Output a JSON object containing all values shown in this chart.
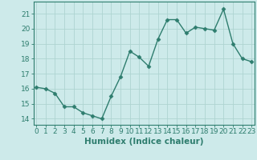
{
  "x": [
    0,
    1,
    2,
    3,
    4,
    5,
    6,
    7,
    8,
    9,
    10,
    11,
    12,
    13,
    14,
    15,
    16,
    17,
    18,
    19,
    20,
    21,
    22,
    23
  ],
  "y": [
    16.1,
    16.0,
    15.7,
    14.8,
    14.8,
    14.4,
    14.2,
    14.0,
    15.5,
    16.8,
    18.5,
    18.1,
    17.5,
    19.3,
    20.6,
    20.6,
    19.7,
    20.1,
    20.0,
    19.9,
    21.3,
    19.0,
    18.0,
    17.8
  ],
  "line_color": "#2e7d6e",
  "marker": "D",
  "markersize": 2.5,
  "linewidth": 1.0,
  "bg_color": "#cdeaea",
  "grid_color": "#aed4d1",
  "axis_color": "#2e7d6e",
  "xlabel": "Humidex (Indice chaleur)",
  "xlabel_fontsize": 7.5,
  "tick_fontsize": 6.5,
  "yticks": [
    14,
    15,
    16,
    17,
    18,
    19,
    20,
    21
  ],
  "xticks": [
    0,
    1,
    2,
    3,
    4,
    5,
    6,
    7,
    8,
    9,
    10,
    11,
    12,
    13,
    14,
    15,
    16,
    17,
    18,
    19,
    20,
    21,
    22,
    23
  ],
  "ylim": [
    13.6,
    21.8
  ],
  "xlim": [
    -0.3,
    23.3
  ]
}
